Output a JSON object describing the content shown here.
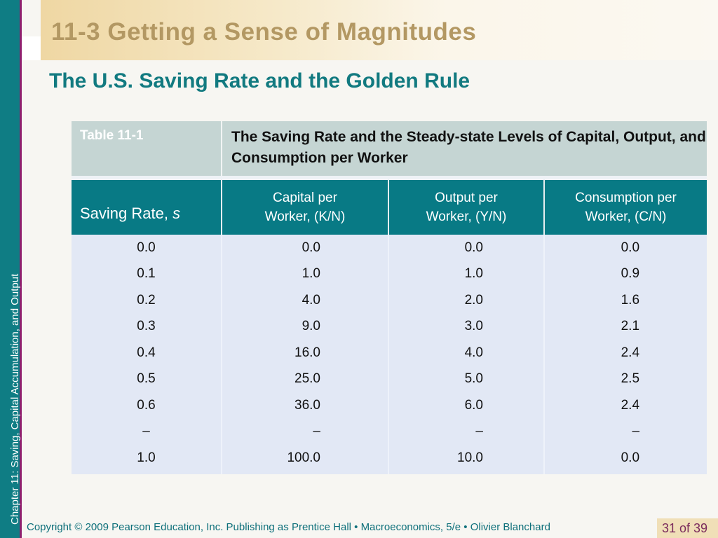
{
  "slide": {
    "title": "11-3  Getting a Sense of Magnitudes",
    "subtitle": "The U.S. Saving Rate and the Golden Rule",
    "side_label": "Chapter 11:  Saving, Capital Accumulation, and Output",
    "footer": "Copyright © 2009 Pearson Education, Inc. Publishing as Prentice Hall  •  Macroeconomics, 5/e  •  Olivier Blanchard",
    "page_number": "31 of 39"
  },
  "table": {
    "id_label": "Table 11-1",
    "caption": "The Saving Rate and the Steady-state Levels of Capital, Output, and Consumption per Worker",
    "header_first": "Saving Rate, ",
    "header_first_var": "s",
    "headers": [
      {
        "line1": "Capital per",
        "line2": "Worker, (K/N)"
      },
      {
        "line1": "Output per",
        "line2": "Worker, (Y/N)"
      },
      {
        "line1": "Consumption per",
        "line2": "Worker, (C/N)"
      }
    ],
    "rows": [
      [
        "0.0",
        "0.0",
        "0.0",
        "0.0"
      ],
      [
        "0.1",
        "1.0",
        "1.0",
        "0.9"
      ],
      [
        "0.2",
        "4.0",
        "2.0",
        "1.6"
      ],
      [
        "0.3",
        "9.0",
        "3.0",
        "2.1"
      ],
      [
        "0.4",
        "16.0",
        "4.0",
        "2.4"
      ],
      [
        "0.5",
        "25.0",
        "5.0",
        "2.5"
      ],
      [
        "0.6",
        "36.0",
        "6.0",
        "2.4"
      ],
      [
        "–",
        "–",
        "–",
        "–"
      ],
      [
        "1.0",
        "100.0",
        "10.0",
        "0.0"
      ]
    ]
  },
  "colors": {
    "teal": "#0f7d84",
    "title_gold": "#b39863",
    "subtitle_teal": "#127a80",
    "header_teal": "#087a85",
    "row_blue": "#e2e8f5"
  }
}
